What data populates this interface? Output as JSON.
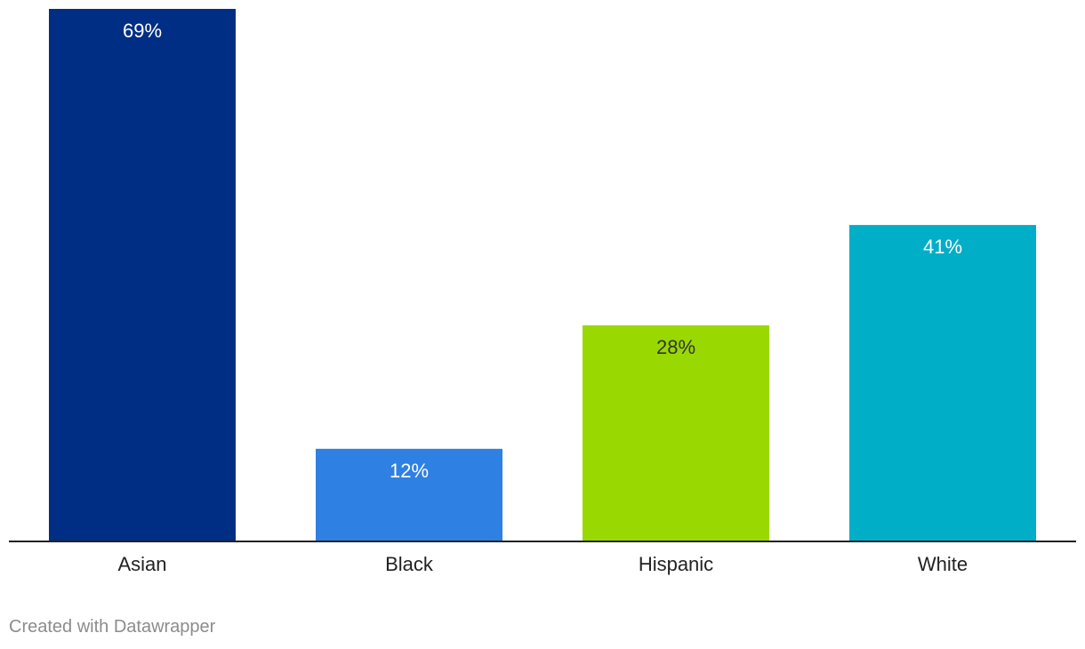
{
  "chart_data": {
    "type": "bar",
    "categories": [
      "Asian",
      "Black",
      "Hispanic",
      "White"
    ],
    "values": [
      69,
      12,
      28,
      41
    ],
    "value_labels": [
      "69%",
      "12%",
      "28%",
      "41%"
    ],
    "colors": [
      "#002e84",
      "#2f80e3",
      "#99d800",
      "#00aec8"
    ],
    "label_colors": [
      "#ffffff",
      "#ffffff",
      "#333333",
      "#ffffff"
    ],
    "ylim": [
      0,
      69
    ],
    "grid": false,
    "legend": "none",
    "title": "",
    "xlabel": "",
    "ylabel": ""
  },
  "footer": {
    "credit": "Created with Datawrapper"
  }
}
